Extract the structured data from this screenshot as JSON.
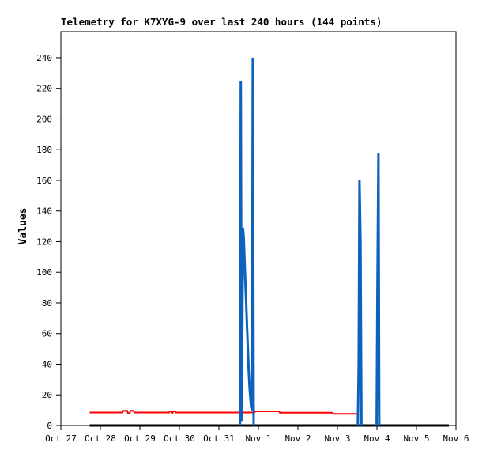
{
  "window": {
    "background": "#ffffff"
  },
  "chart_data": {
    "type": "line",
    "title": "Telemetry for K7XYG-9 over last 240 hours (144 points)",
    "ylabel": "Values",
    "xlabel": "",
    "x_unit": "hours since Oct 27 00:00",
    "xlim": [
      0,
      240
    ],
    "ylim": [
      0,
      257
    ],
    "grid": false,
    "legend": "none",
    "border_box": true,
    "tick_direction": "out",
    "y_ticks": [
      0,
      20,
      40,
      60,
      80,
      100,
      120,
      140,
      160,
      180,
      200,
      220,
      240
    ],
    "x_ticks": [
      {
        "hour": 0,
        "label": "Oct 27"
      },
      {
        "hour": 24,
        "label": "Oct 28"
      },
      {
        "hour": 48,
        "label": "Oct 29"
      },
      {
        "hour": 72,
        "label": "Oct 30"
      },
      {
        "hour": 96,
        "label": "Oct 31"
      },
      {
        "hour": 120,
        "label": "Nov 1"
      },
      {
        "hour": 144,
        "label": "Nov 2"
      },
      {
        "hour": 168,
        "label": "Nov 3"
      },
      {
        "hour": 192,
        "label": "Nov 4"
      },
      {
        "hour": 216,
        "label": "Nov 5"
      },
      {
        "hour": 240,
        "label": "Nov 6"
      }
    ],
    "colors": {
      "axis": "#000000",
      "title": "#000000",
      "red_channel": "#ff0000",
      "black_channel": "#000000",
      "blue_channel": "#0d62bd",
      "background": "#ffffff"
    },
    "series": [
      {
        "name": "red-channel",
        "color": "#ff0000",
        "width": 2,
        "points": [
          [
            17.5,
            8.5
          ],
          [
            37.4,
            8.5
          ],
          [
            37.9,
            9.7
          ],
          [
            40.3,
            9.7
          ],
          [
            40.8,
            8.0
          ],
          [
            41.8,
            8.0
          ],
          [
            42.3,
            9.7
          ],
          [
            44.2,
            9.7
          ],
          [
            44.7,
            8.5
          ],
          [
            65.8,
            8.5
          ],
          [
            66.3,
            9.3
          ],
          [
            67.3,
            9.3
          ],
          [
            67.8,
            8.3
          ],
          [
            68.3,
            9.3
          ],
          [
            69.3,
            9.3
          ],
          [
            69.8,
            8.5
          ],
          [
            117.6,
            8.5
          ],
          [
            118.1,
            9.3
          ],
          [
            132.5,
            9.3
          ],
          [
            133.0,
            8.4
          ],
          [
            164.6,
            8.4
          ],
          [
            165.1,
            7.6
          ],
          [
            180.5,
            7.6
          ]
        ]
      },
      {
        "name": "black-channel-zero-line",
        "color": "#000000",
        "width": 3,
        "points": [
          [
            17.5,
            0
          ],
          [
            235.7,
            0
          ]
        ]
      },
      {
        "name": "blue-channel-spike-cluster-nov1",
        "color": "#0d62bd",
        "width": 3,
        "points": [
          [
            108.8,
            0
          ],
          [
            109.3,
            225
          ],
          [
            109.8,
            3
          ],
          [
            110.6,
            129
          ],
          [
            111.1,
            122
          ],
          [
            111.6,
            107
          ],
          [
            112.1,
            93
          ],
          [
            112.6,
            79
          ],
          [
            113.1,
            64
          ],
          [
            113.6,
            50
          ],
          [
            114.1,
            36
          ],
          [
            114.6,
            25
          ],
          [
            115.1,
            18
          ],
          [
            115.6,
            12
          ],
          [
            116.1,
            10
          ],
          [
            116.6,
            240
          ],
          [
            117.1,
            0
          ]
        ]
      },
      {
        "name": "blue-channel-spike-cluster-nov3",
        "color": "#0d62bd",
        "width": 3,
        "points": [
          [
            180.4,
            0
          ],
          [
            180.9,
            40
          ],
          [
            181.4,
            160
          ],
          [
            182.0,
            120
          ],
          [
            182.6,
            0
          ]
        ]
      },
      {
        "name": "blue-channel-spike-cluster-nov4",
        "color": "#0d62bd",
        "width": 3,
        "points": [
          [
            191.8,
            0
          ],
          [
            192.3,
            88
          ],
          [
            192.9,
            178
          ],
          [
            193.4,
            0
          ]
        ]
      }
    ]
  }
}
